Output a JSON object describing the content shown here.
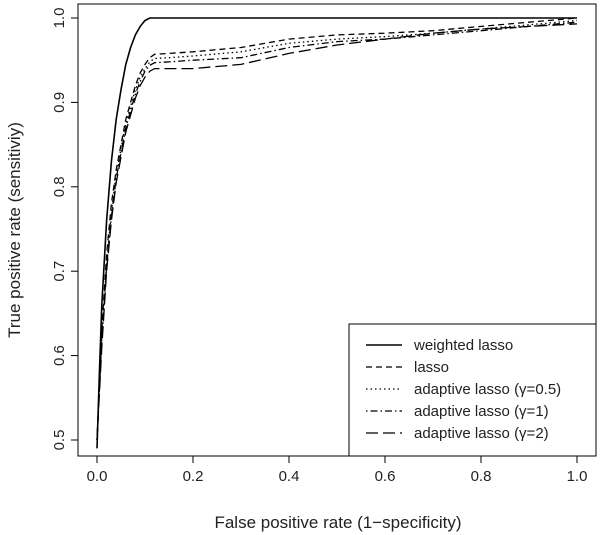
{
  "chart_data": {
    "type": "line",
    "title": "",
    "xlabel": "False positive rate (1−specificity)",
    "ylabel": "True positive rate (sensitiviy)",
    "xlim": [
      0.0,
      1.0
    ],
    "ylim": [
      0.5,
      1.0
    ],
    "x_ticks": [
      "0.0",
      "0.2",
      "0.4",
      "0.6",
      "0.8",
      "1.0"
    ],
    "y_ticks": [
      "0.5",
      "0.6",
      "0.7",
      "0.8",
      "0.9",
      "1.0"
    ],
    "grid": false,
    "legend_position": "bottom-right",
    "series": [
      {
        "name": "weighted lasso",
        "line_style": "solid",
        "x": [
          0.0,
          0.005,
          0.01,
          0.02,
          0.03,
          0.04,
          0.05,
          0.06,
          0.07,
          0.08,
          0.09,
          0.1,
          0.11,
          0.12,
          0.13,
          0.2,
          0.4,
          0.6,
          0.8,
          1.0
        ],
        "y": [
          0.49,
          0.58,
          0.66,
          0.76,
          0.83,
          0.88,
          0.915,
          0.945,
          0.965,
          0.98,
          0.99,
          0.997,
          1.0,
          1.0,
          1.0,
          1.0,
          1.0,
          1.0,
          1.0,
          1.0
        ]
      },
      {
        "name": "lasso",
        "line_style": "dashed",
        "x": [
          0.0,
          0.01,
          0.02,
          0.03,
          0.04,
          0.05,
          0.06,
          0.07,
          0.08,
          0.09,
          0.1,
          0.11,
          0.12,
          0.15,
          0.2,
          0.3,
          0.4,
          0.5,
          0.6,
          0.7,
          0.8,
          0.9,
          1.0
        ],
        "y": [
          0.5,
          0.63,
          0.72,
          0.78,
          0.82,
          0.85,
          0.88,
          0.9,
          0.92,
          0.935,
          0.945,
          0.953,
          0.957,
          0.958,
          0.96,
          0.965,
          0.975,
          0.98,
          0.982,
          0.985,
          0.99,
          0.995,
          1.0
        ]
      },
      {
        "name": "adaptive lasso (γ=0.5)",
        "line_style": "dotted",
        "x": [
          0.0,
          0.01,
          0.02,
          0.03,
          0.04,
          0.05,
          0.06,
          0.07,
          0.08,
          0.09,
          0.1,
          0.11,
          0.12,
          0.15,
          0.2,
          0.3,
          0.4,
          0.5,
          0.6,
          0.7,
          0.8,
          0.9,
          1.0
        ],
        "y": [
          0.5,
          0.62,
          0.71,
          0.77,
          0.815,
          0.845,
          0.875,
          0.895,
          0.915,
          0.93,
          0.94,
          0.948,
          0.952,
          0.953,
          0.955,
          0.96,
          0.97,
          0.975,
          0.978,
          0.982,
          0.987,
          0.992,
          0.997
        ]
      },
      {
        "name": "adaptive lasso (γ=1)",
        "line_style": "dotdash",
        "x": [
          0.0,
          0.01,
          0.02,
          0.03,
          0.04,
          0.05,
          0.06,
          0.07,
          0.08,
          0.09,
          0.1,
          0.11,
          0.12,
          0.15,
          0.2,
          0.3,
          0.4,
          0.5,
          0.6,
          0.7,
          0.8,
          0.9,
          1.0
        ],
        "y": [
          0.5,
          0.62,
          0.705,
          0.765,
          0.81,
          0.84,
          0.87,
          0.89,
          0.91,
          0.925,
          0.937,
          0.944,
          0.947,
          0.948,
          0.95,
          0.953,
          0.965,
          0.972,
          0.975,
          0.98,
          0.985,
          0.99,
          0.995
        ]
      },
      {
        "name": "adaptive lasso (γ=2)",
        "line_style": "longdash",
        "x": [
          0.0,
          0.01,
          0.02,
          0.03,
          0.04,
          0.05,
          0.06,
          0.07,
          0.08,
          0.09,
          0.1,
          0.11,
          0.12,
          0.15,
          0.2,
          0.3,
          0.4,
          0.5,
          0.6,
          0.7,
          0.8,
          0.9,
          1.0
        ],
        "y": [
          0.5,
          0.61,
          0.7,
          0.76,
          0.805,
          0.835,
          0.865,
          0.885,
          0.905,
          0.92,
          0.93,
          0.937,
          0.94,
          0.94,
          0.94,
          0.945,
          0.958,
          0.968,
          0.975,
          0.982,
          0.987,
          0.99,
          0.993
        ]
      }
    ]
  }
}
